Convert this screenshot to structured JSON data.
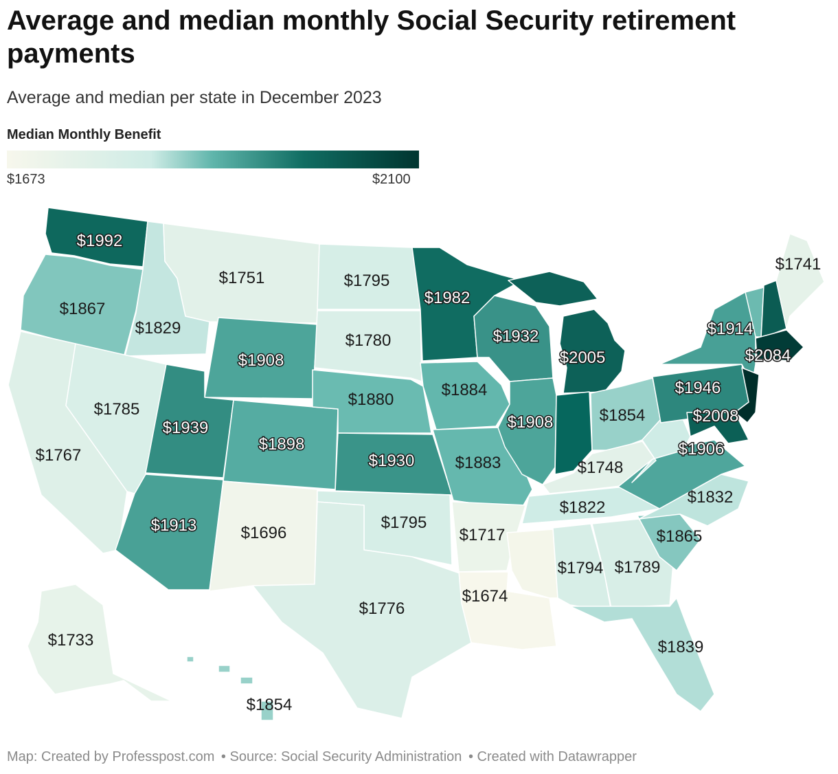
{
  "title": "Average and median monthly Social Security retirement payments",
  "subtitle": "Average and median per state in December 2023",
  "legend": {
    "title": "Median Monthly Benefit",
    "min_label": "$1673",
    "max_label": "$2100",
    "min": 1673,
    "max": 2100,
    "colors": [
      "#f7f7ec",
      "#cfece6",
      "#5fb5ab",
      "#106d62",
      "#003530"
    ]
  },
  "footer": {
    "map_credit": "Map: Created by Professpost.com",
    "source": "• Source: Social Security Administration",
    "tool": "• Created with Datawrapper"
  },
  "states": [
    {
      "abbr": "WA",
      "name": "Washington",
      "value": 1992,
      "label": "$1992"
    },
    {
      "abbr": "OR",
      "name": "Oregon",
      "value": 1867,
      "label": "$1867"
    },
    {
      "abbr": "CA",
      "name": "California",
      "value": 1767,
      "label": "$1767"
    },
    {
      "abbr": "ID",
      "name": "Idaho",
      "value": 1829,
      "label": "$1829"
    },
    {
      "abbr": "NV",
      "name": "Nevada",
      "value": 1785,
      "label": "$1785"
    },
    {
      "abbr": "MT",
      "name": "Montana",
      "value": 1751,
      "label": "$1751"
    },
    {
      "abbr": "WY",
      "name": "Wyoming",
      "value": 1908,
      "label": "$1908"
    },
    {
      "abbr": "UT",
      "name": "Utah",
      "value": 1939,
      "label": "$1939"
    },
    {
      "abbr": "AZ",
      "name": "Arizona",
      "value": 1913,
      "label": "$1913"
    },
    {
      "abbr": "CO",
      "name": "Colorado",
      "value": 1898,
      "label": "$1898"
    },
    {
      "abbr": "NM",
      "name": "New Mexico",
      "value": 1696,
      "label": "$1696"
    },
    {
      "abbr": "ND",
      "name": "North Dakota",
      "value": 1795,
      "label": "$1795"
    },
    {
      "abbr": "SD",
      "name": "South Dakota",
      "value": 1780,
      "label": "$1780"
    },
    {
      "abbr": "NE",
      "name": "Nebraska",
      "value": 1880,
      "label": "$1880"
    },
    {
      "abbr": "KS",
      "name": "Kansas",
      "value": 1930,
      "label": "$1930"
    },
    {
      "abbr": "OK",
      "name": "Oklahoma",
      "value": 1795,
      "label": "$1795"
    },
    {
      "abbr": "TX",
      "name": "Texas",
      "value": 1776,
      "label": "$1776"
    },
    {
      "abbr": "MN",
      "name": "Minnesota",
      "value": 1982,
      "label": "$1982"
    },
    {
      "abbr": "IA",
      "name": "Iowa",
      "value": 1884,
      "label": "$1884"
    },
    {
      "abbr": "MO",
      "name": "Missouri",
      "value": 1883,
      "label": "$1883"
    },
    {
      "abbr": "AR",
      "name": "Arkansas",
      "value": 1717,
      "label": "$1717"
    },
    {
      "abbr": "LA",
      "name": "Louisiana",
      "value": 1674,
      "label": "$1674"
    },
    {
      "abbr": "WI",
      "name": "Wisconsin",
      "value": 1932,
      "label": "$1932"
    },
    {
      "abbr": "IL",
      "name": "Illinois",
      "value": 1908,
      "label": "$1908"
    },
    {
      "abbr": "MI",
      "name": "Michigan",
      "value": 2005,
      "label": "$2005"
    },
    {
      "abbr": "IN",
      "name": "Indiana",
      "value": null,
      "label": ""
    },
    {
      "abbr": "OH",
      "name": "Ohio",
      "value": 1854,
      "label": "$1854"
    },
    {
      "abbr": "KY",
      "name": "Kentucky",
      "value": 1748,
      "label": "$1748"
    },
    {
      "abbr": "TN",
      "name": "Tennessee",
      "value": 1822,
      "label": "$1822"
    },
    {
      "abbr": "MS",
      "name": "Mississippi",
      "value": null,
      "label": ""
    },
    {
      "abbr": "AL",
      "name": "Alabama",
      "value": 1794,
      "label": "$1794"
    },
    {
      "abbr": "GA",
      "name": "Georgia",
      "value": 1789,
      "label": "$1789"
    },
    {
      "abbr": "FL",
      "name": "Florida",
      "value": 1839,
      "label": "$1839"
    },
    {
      "abbr": "SC",
      "name": "South Carolina",
      "value": 1865,
      "label": "$1865"
    },
    {
      "abbr": "NC",
      "name": "North Carolina",
      "value": 1832,
      "label": "$1832"
    },
    {
      "abbr": "VA",
      "name": "Virginia",
      "value": 1906,
      "label": "$1906"
    },
    {
      "abbr": "WV",
      "name": "West Virginia",
      "value": null,
      "label": ""
    },
    {
      "abbr": "PA",
      "name": "Pennsylvania",
      "value": 1946,
      "label": "$1946"
    },
    {
      "abbr": "NY",
      "name": "New York",
      "value": 1914,
      "label": "$1914"
    },
    {
      "abbr": "VT",
      "name": "Vermont",
      "value": null,
      "label": ""
    },
    {
      "abbr": "NH",
      "name": "New Hampshire",
      "value": null,
      "label": ""
    },
    {
      "abbr": "ME",
      "name": "Maine",
      "value": 1741,
      "label": "$1741"
    },
    {
      "abbr": "MA",
      "name": "Massachusetts",
      "value": 2084,
      "label": "$2084"
    },
    {
      "abbr": "NJ",
      "name": "New Jersey",
      "value": null,
      "label": ""
    },
    {
      "abbr": "MD",
      "name": "Maryland",
      "value": 2008,
      "label": "$2008"
    },
    {
      "abbr": "AK",
      "name": "Alaska",
      "value": 1733,
      "label": "$1733"
    },
    {
      "abbr": "HI",
      "name": "Hawaii",
      "value": 1854,
      "label": "$1854"
    }
  ]
}
